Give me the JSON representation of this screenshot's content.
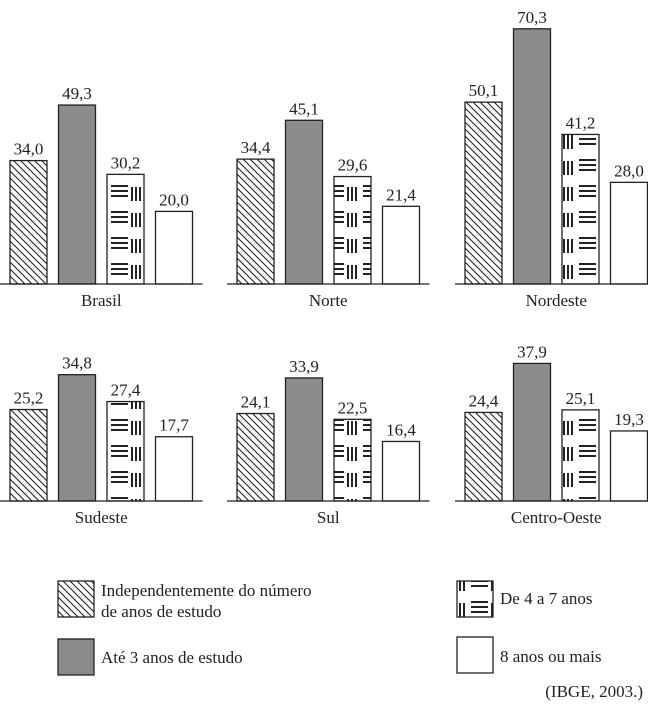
{
  "chart_data": {
    "type": "bar",
    "panels": [
      {
        "title": "Brasil",
        "values": [
          "34,0",
          "49,3",
          "30,2",
          "20,0"
        ]
      },
      {
        "title": "Norte",
        "values": [
          "34,4",
          "45,1",
          "29,6",
          "21,4"
        ]
      },
      {
        "title": "Nordeste",
        "values": [
          "50,1",
          "70,3",
          "41,2",
          "28,0"
        ]
      },
      {
        "title": "Sudeste",
        "values": [
          "25,2",
          "34,8",
          "27,4",
          "17,7"
        ]
      },
      {
        "title": "Sul",
        "values": [
          "24,1",
          "33,9",
          "22,5",
          "16,4"
        ]
      },
      {
        "title": "Centro-Oeste",
        "values": [
          "24,4",
          "37,9",
          "25,1",
          "19,3"
        ]
      }
    ],
    "series": [
      {
        "name": "Independentemente do número de anos de estudo",
        "pattern": "diagonal-hatch"
      },
      {
        "name": "Até 3 anos de estudo",
        "pattern": "solid",
        "color": "#8c8c8c"
      },
      {
        "name": "De 4 a 7 anos",
        "pattern": "horizontal-lines"
      },
      {
        "name": "8 anos ou mais",
        "pattern": "white"
      }
    ],
    "legend": {
      "items": [
        {
          "line1": "Independentemente do número",
          "line2": "de anos de estudo"
        },
        {
          "line1": "Até 3 anos de estudo"
        },
        {
          "line1": "De 4 a 7 anos"
        },
        {
          "line1": "8 anos ou mais"
        }
      ],
      "placement": "bottom"
    },
    "source": "(IBGE, 2003.)"
  }
}
